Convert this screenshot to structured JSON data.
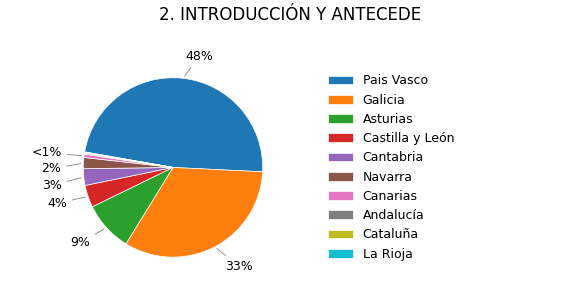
{
  "chart_data": {
    "type": "pie",
    "title": "2. INTRODUCCIÓN Y ANTECEDE",
    "categories": [
      "Pais Vasco",
      "Galicia",
      "Asturias",
      "Castilla y León",
      "Cantabria",
      "Navarra",
      "Canarias",
      "Andalucía",
      "Cataluña",
      "La Rioja"
    ],
    "values": [
      48,
      33,
      9,
      4,
      3,
      2,
      0.6,
      0.2,
      0.1,
      0.1
    ],
    "value_labels": [
      "48%",
      "33%",
      "9%",
      "4%",
      "3%",
      "2%",
      "<1%",
      null,
      null,
      null
    ],
    "data_labels": true,
    "legend": "center left"
  }
}
